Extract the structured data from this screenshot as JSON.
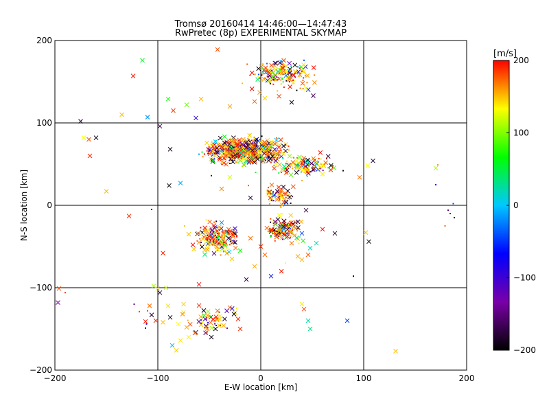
{
  "chart_data": {
    "type": "scatter",
    "title": "Tromsø 20160414 14:46:00—14:47:43",
    "subtitle": "RwPretec (8p) EXPERIMENTAL SKYMAP",
    "xlabel": "E-W location [km]",
    "ylabel": "N-S location [km]",
    "xlim": [
      -200,
      200
    ],
    "ylim": [
      -200,
      200
    ],
    "xticks": [
      -200,
      -100,
      0,
      100,
      200
    ],
    "yticks": [
      -200,
      -100,
      0,
      100,
      200
    ],
    "grid": true,
    "colorbar": {
      "label": "[m/s]",
      "range": [
        -200,
        200
      ],
      "ticks": [
        200,
        100,
        0,
        -100,
        -200
      ],
      "colors": [
        "#000000",
        "#7a00a8",
        "#0000ff",
        "#00c8ff",
        "#00ff00",
        "#ffff00",
        "#ff0000"
      ]
    },
    "marker_legend": {
      "cross": "x",
      "dot": "."
    },
    "series": [
      {
        "marker": "x",
        "points": [
          [
            -175,
            102
          ],
          [
            -172,
            82
          ],
          [
            -167,
            80
          ],
          [
            -160,
            82
          ],
          [
            -166,
            60
          ],
          [
            -124,
            157
          ],
          [
            -115,
            176
          ],
          [
            -135,
            110
          ],
          [
            -110,
            107
          ],
          [
            -98,
            96
          ],
          [
            -90,
            129
          ],
          [
            -85,
            115
          ],
          [
            -72,
            122
          ],
          [
            -58,
            129
          ],
          [
            -42,
            189
          ],
          [
            -63,
            106
          ],
          [
            -30,
            120
          ],
          [
            -6,
            126
          ],
          [
            -1,
            137
          ],
          [
            4,
            130
          ],
          [
            30,
            125
          ],
          [
            44,
            142
          ],
          [
            51,
            133
          ],
          [
            -150,
            17
          ],
          [
            -128,
            -13
          ],
          [
            -95,
            -58
          ],
          [
            -75,
            -120
          ],
          [
            -89,
            24
          ],
          [
            -88,
            68
          ],
          [
            -78,
            27
          ],
          [
            -38,
            20
          ],
          [
            -30,
            34
          ],
          [
            -10,
            9
          ],
          [
            8,
            15
          ],
          [
            16,
            17
          ],
          [
            28,
            10
          ],
          [
            36,
            -20
          ],
          [
            44,
            -6
          ],
          [
            -48,
            -28
          ],
          [
            -54,
            -33
          ],
          [
            -60,
            -45
          ],
          [
            -70,
            -35
          ],
          [
            -66,
            -48
          ],
          [
            -38,
            -21
          ],
          [
            -30,
            -32
          ],
          [
            -25,
            -45
          ],
          [
            -42,
            -50
          ],
          [
            -20,
            -55
          ],
          [
            -28,
            -65
          ],
          [
            -10,
            -40
          ],
          [
            0,
            -50
          ],
          [
            4,
            -60
          ],
          [
            10,
            -30
          ],
          [
            14,
            -20
          ],
          [
            18,
            -12
          ],
          [
            22,
            -26
          ],
          [
            26,
            -38
          ],
          [
            30,
            -46
          ],
          [
            36,
            -62
          ],
          [
            40,
            -66
          ],
          [
            46,
            -60
          ],
          [
            48,
            -52
          ],
          [
            54,
            -46
          ],
          [
            72,
            -34
          ],
          [
            102,
            -33
          ],
          [
            105,
            -44
          ],
          [
            40,
            -34
          ],
          [
            60,
            -29
          ],
          [
            -100,
            -101
          ],
          [
            -98,
            -106
          ],
          [
            -108,
            -122
          ],
          [
            -106,
            -133
          ],
          [
            -90,
            -122
          ],
          [
            -88,
            -136
          ],
          [
            -80,
            -144
          ],
          [
            -75,
            -130
          ],
          [
            -72,
            -148
          ],
          [
            -70,
            -160
          ],
          [
            -64,
            -155
          ],
          [
            -58,
            -145
          ],
          [
            -54,
            -138
          ],
          [
            -52,
            -150
          ],
          [
            -48,
            -160
          ],
          [
            -42,
            -128
          ],
          [
            -40,
            -138
          ],
          [
            -36,
            -146
          ],
          [
            -30,
            -124
          ],
          [
            -26,
            -132
          ],
          [
            -22,
            -138
          ],
          [
            -20,
            -150
          ],
          [
            -86,
            -170
          ],
          [
            -82,
            -176
          ],
          [
            -78,
            -164
          ],
          [
            -95,
            -142
          ],
          [
            -102,
            -140
          ],
          [
            40,
            -120
          ],
          [
            42,
            -126
          ],
          [
            46,
            -140
          ],
          [
            48,
            -150
          ],
          [
            84,
            -140
          ],
          [
            -196,
            -101
          ],
          [
            -197,
            -118
          ],
          [
            -104,
            -98
          ],
          [
            131,
            -177
          ],
          [
            170,
            45
          ],
          [
            104,
            48
          ],
          [
            109,
            54
          ],
          [
            96,
            34
          ],
          [
            68,
            43
          ],
          [
            60,
            38
          ],
          [
            -112,
            -141
          ],
          [
            -76,
            -132
          ],
          [
            -44,
            -150
          ],
          [
            -33,
            -128
          ],
          [
            -14,
            -90
          ],
          [
            10,
            -86
          ],
          [
            20,
            -80
          ],
          [
            -6,
            -74
          ],
          [
            -92,
            -100
          ],
          [
            -60,
            -96
          ]
        ]
      },
      {
        "marker": ".",
        "points": [
          [
            -123,
            -120
          ],
          [
            -111,
            -144
          ],
          [
            -30,
            80
          ],
          [
            -22,
            70
          ],
          [
            -10,
            64
          ],
          [
            0,
            58
          ],
          [
            10,
            52
          ],
          [
            -40,
            72
          ],
          [
            -50,
            66
          ],
          [
            -60,
            62
          ],
          [
            170,
            25
          ],
          [
            182,
            -6
          ],
          [
            184,
            -10
          ],
          [
            188,
            -15
          ],
          [
            179,
            -25
          ],
          [
            187,
            2
          ],
          [
            172,
            49
          ],
          [
            -5,
            40
          ],
          [
            -12,
            24
          ],
          [
            -48,
            36
          ],
          [
            20,
            40
          ],
          [
            40,
            30
          ],
          [
            70,
            48
          ],
          [
            80,
            42
          ],
          [
            90,
            -86
          ],
          [
            -190,
            -106
          ],
          [
            -106,
            -5
          ],
          [
            -74,
            -25
          ],
          [
            -18,
            148
          ],
          [
            6,
            172
          ],
          [
            18,
            160
          ],
          [
            28,
            150
          ],
          [
            36,
            168
          ],
          [
            42,
            176
          ],
          [
            52,
            158
          ],
          [
            -110,
            -128
          ],
          [
            -112,
            -149
          ],
          [
            24,
            -70
          ],
          [
            -36,
            -56
          ],
          [
            -118,
            -129
          ]
        ]
      }
    ],
    "clusters": [
      {
        "name": "",
        "cx": -15,
        "cy": 66,
        "sx": 32,
        "sy": 12,
        "n": 520
      },
      {
        "name": "",
        "cx": 45,
        "cy": 48,
        "sx": 22,
        "sy": 10,
        "n": 110
      },
      {
        "name": "",
        "cx": 20,
        "cy": 158,
        "sx": 22,
        "sy": 14,
        "n": 150
      },
      {
        "name": "",
        "cx": 18,
        "cy": 12,
        "sx": 10,
        "sy": 12,
        "n": 60
      },
      {
        "name": "",
        "cx": -42,
        "cy": -40,
        "sx": 16,
        "sy": 14,
        "n": 160
      },
      {
        "name": "",
        "cx": 22,
        "cy": -28,
        "sx": 14,
        "sy": 14,
        "n": 110
      },
      {
        "name": "",
        "cx": -48,
        "cy": -140,
        "sx": 20,
        "sy": 12,
        "n": 40
      }
    ]
  }
}
